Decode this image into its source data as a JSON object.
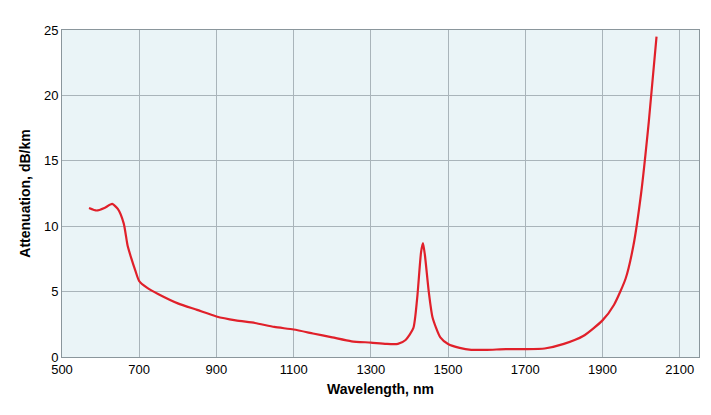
{
  "chart_data": {
    "type": "line",
    "x_label": "Wavelength, nm",
    "y_label": "Attenuation, dB/km",
    "color": "#e0202a",
    "x": [
      570,
      590,
      610,
      630,
      645,
      660,
      670,
      680,
      690,
      700,
      720,
      750,
      800,
      850,
      900,
      950,
      1000,
      1050,
      1100,
      1150,
      1200,
      1250,
      1300,
      1340,
      1370,
      1390,
      1410,
      1420,
      1430,
      1435,
      1440,
      1450,
      1460,
      1480,
      1500,
      1530,
      1560,
      1600,
      1650,
      1700,
      1750,
      1800,
      1850,
      1900,
      1930,
      1960,
      1980,
      2000,
      2020,
      2040
    ],
    "values": [
      11.4,
      11.2,
      11.4,
      11.7,
      11.3,
      10.2,
      8.5,
      7.5,
      6.6,
      5.8,
      5.3,
      4.8,
      4.1,
      3.6,
      3.1,
      2.8,
      2.6,
      2.3,
      2.1,
      1.8,
      1.5,
      1.2,
      1.1,
      1.0,
      1.0,
      1.3,
      2.2,
      4.5,
      8.0,
      8.7,
      7.8,
      5.0,
      3.0,
      1.5,
      1.0,
      0.7,
      0.55,
      0.55,
      0.6,
      0.6,
      0.65,
      1.0,
      1.6,
      2.8,
      4.0,
      6.0,
      8.5,
      12.5,
      18,
      24.5
    ],
    "xlim": [
      500,
      2150
    ],
    "ylim": [
      0,
      25
    ],
    "xticks": [
      500,
      700,
      900,
      1100,
      1300,
      1500,
      1700,
      1900,
      2100
    ],
    "yticks": [
      0,
      5,
      10,
      15,
      20,
      25
    ],
    "grid": true
  }
}
